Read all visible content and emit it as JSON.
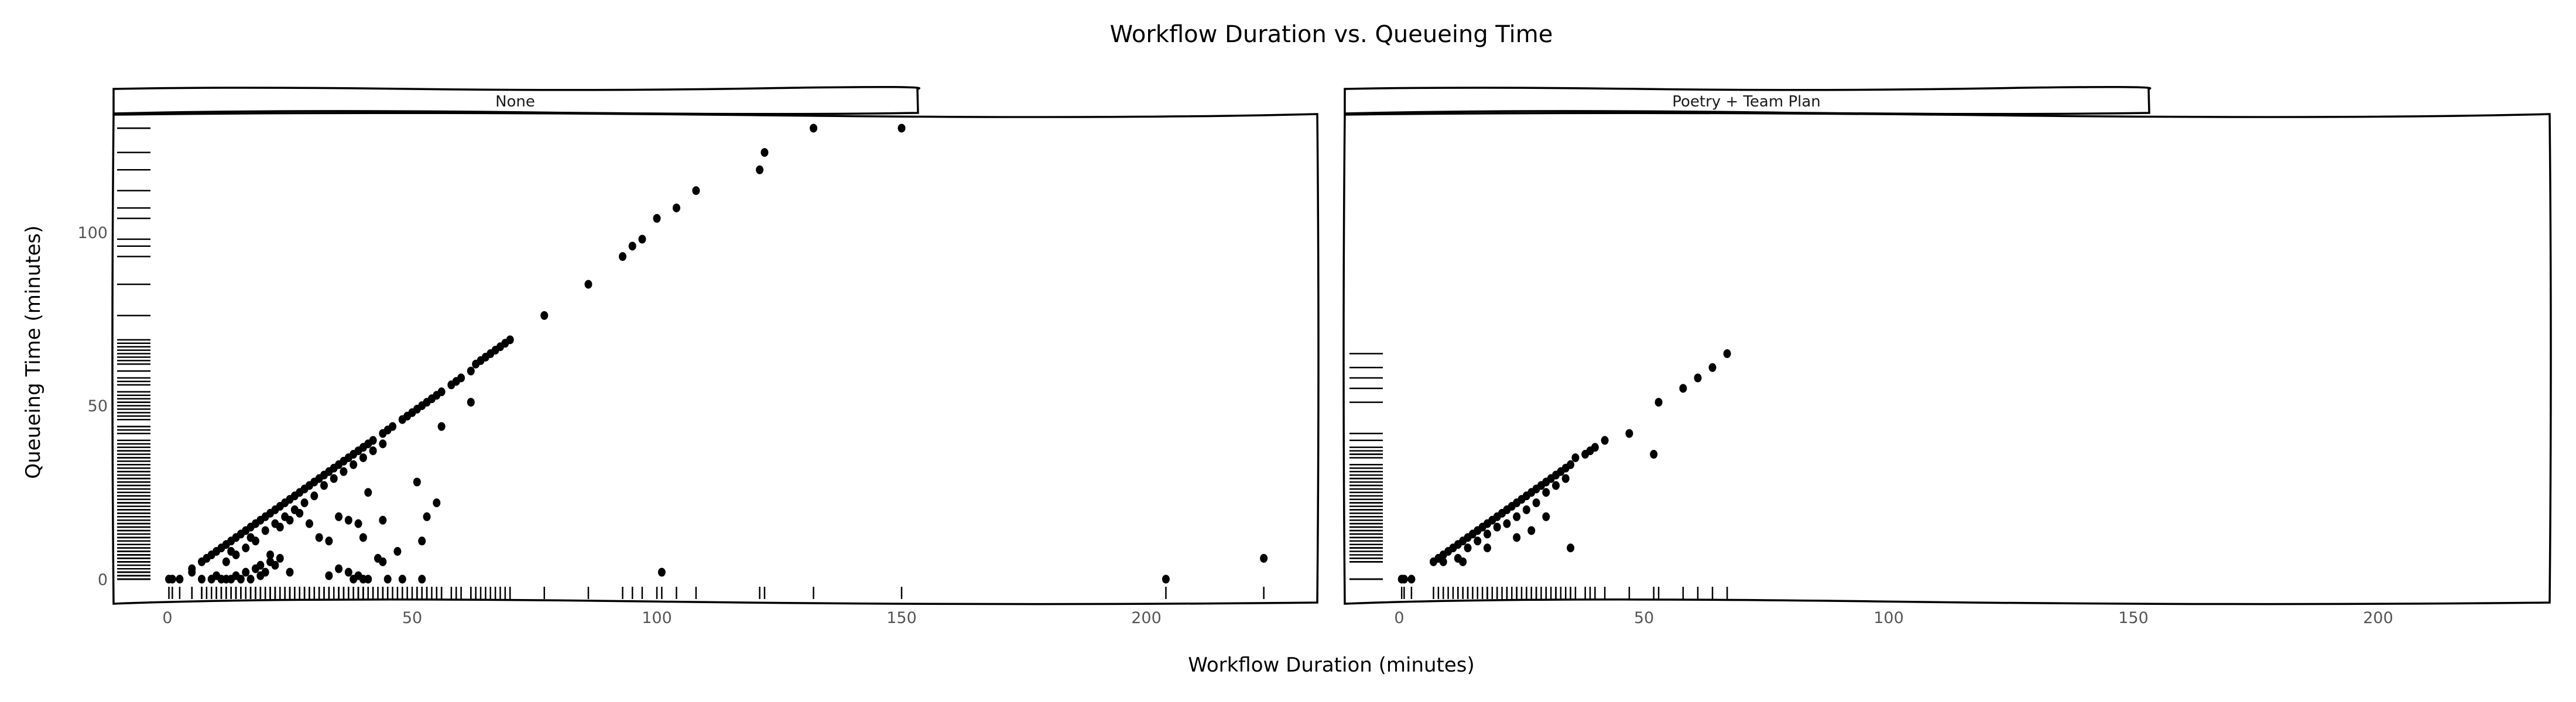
{
  "figure": {
    "title": "Workflow Duration vs. Queueing Time",
    "xlabel": "Workflow Duration (minutes)",
    "ylabel": "Queueing Time (minutes)"
  },
  "panels": [
    {
      "strip_label": "None"
    },
    {
      "strip_label": "Poetry + Team Plan"
    }
  ],
  "axes": {
    "x_ticks": [
      "0",
      "50",
      "100",
      "150",
      "200"
    ],
    "y_ticks": [
      "0",
      "50",
      "100"
    ]
  },
  "chart_data": {
    "type": "scatter",
    "title": "Workflow Duration vs. Queueing Time",
    "xlabel": "Workflow Duration (minutes)",
    "ylabel": "Queueing Time (minutes)",
    "xlim": [
      -11,
      235
    ],
    "ylim": [
      -7,
      134
    ],
    "x_ticks": [
      0,
      50,
      100,
      150,
      200
    ],
    "y_ticks": [
      0,
      50,
      100
    ],
    "grid": false,
    "style": "xkcd hand-drawn, faceted with rug plots on both axes",
    "facets": [
      "None",
      "Poetry + Team Plan"
    ],
    "series": [
      {
        "name": "None",
        "points": [
          [
            0.3,
            0
          ],
          [
            1,
            0
          ],
          [
            2.5,
            0
          ],
          [
            5,
            2
          ],
          [
            7,
            0
          ],
          [
            9,
            0
          ],
          [
            10,
            1
          ],
          [
            11,
            0
          ],
          [
            12,
            0
          ],
          [
            13,
            0
          ],
          [
            14,
            1
          ],
          [
            15,
            0
          ],
          [
            16,
            2
          ],
          [
            17,
            0
          ],
          [
            18,
            3
          ],
          [
            19,
            1
          ],
          [
            20,
            2
          ],
          [
            21,
            5
          ],
          [
            22,
            4
          ],
          [
            23,
            6
          ],
          [
            19,
            4
          ],
          [
            21,
            7
          ],
          [
            5,
            3
          ],
          [
            7,
            5
          ],
          [
            8,
            6
          ],
          [
            9,
            7
          ],
          [
            10,
            8
          ],
          [
            11,
            9
          ],
          [
            12,
            10
          ],
          [
            13,
            11
          ],
          [
            14,
            12
          ],
          [
            15,
            13
          ],
          [
            16,
            14
          ],
          [
            17,
            15
          ],
          [
            18,
            16
          ],
          [
            19,
            17
          ],
          [
            20,
            18
          ],
          [
            21,
            19
          ],
          [
            22,
            20
          ],
          [
            23,
            21
          ],
          [
            24,
            22
          ],
          [
            25,
            23
          ],
          [
            26,
            24
          ],
          [
            27,
            25
          ],
          [
            28,
            26
          ],
          [
            29,
            27
          ],
          [
            30,
            28
          ],
          [
            31,
            29
          ],
          [
            32,
            30
          ],
          [
            33,
            31
          ],
          [
            34,
            32
          ],
          [
            35,
            33
          ],
          [
            36,
            34
          ],
          [
            37,
            35
          ],
          [
            38,
            36
          ],
          [
            39,
            37
          ],
          [
            40,
            38
          ],
          [
            41,
            39
          ],
          [
            42,
            40
          ],
          [
            44,
            42
          ],
          [
            45,
            43
          ],
          [
            46,
            44
          ],
          [
            48,
            46
          ],
          [
            49,
            47
          ],
          [
            50,
            48
          ],
          [
            51,
            49
          ],
          [
            52,
            50
          ],
          [
            53,
            51
          ],
          [
            54,
            52
          ],
          [
            55,
            53
          ],
          [
            56,
            54
          ],
          [
            58,
            56
          ],
          [
            59,
            57
          ],
          [
            60,
            58
          ],
          [
            62,
            60
          ],
          [
            63,
            62
          ],
          [
            64,
            63
          ],
          [
            65,
            64
          ],
          [
            66,
            65
          ],
          [
            67,
            66
          ],
          [
            68,
            67
          ],
          [
            69,
            68
          ],
          [
            70,
            69
          ],
          [
            12,
            5
          ],
          [
            14,
            7
          ],
          [
            16,
            9
          ],
          [
            18,
            11
          ],
          [
            20,
            14
          ],
          [
            22,
            16
          ],
          [
            24,
            18
          ],
          [
            26,
            20
          ],
          [
            28,
            22
          ],
          [
            30,
            24
          ],
          [
            32,
            27
          ],
          [
            34,
            29
          ],
          [
            36,
            31
          ],
          [
            38,
            33
          ],
          [
            40,
            35
          ],
          [
            42,
            37
          ],
          [
            44,
            39
          ],
          [
            13,
            8
          ],
          [
            17,
            12
          ],
          [
            23,
            15
          ],
          [
            25,
            17
          ],
          [
            27,
            19
          ],
          [
            29,
            16
          ],
          [
            31,
            12
          ],
          [
            33,
            11
          ],
          [
            35,
            18
          ],
          [
            37,
            17
          ],
          [
            39,
            16
          ],
          [
            40,
            12
          ],
          [
            41,
            25
          ],
          [
            44,
            17
          ],
          [
            47,
            8
          ],
          [
            51,
            28
          ],
          [
            52,
            11
          ],
          [
            53,
            18
          ],
          [
            55,
            22
          ],
          [
            56,
            44
          ],
          [
            62,
            51
          ],
          [
            25,
            2
          ],
          [
            33,
            1
          ],
          [
            35,
            3
          ],
          [
            37,
            2
          ],
          [
            38,
            0
          ],
          [
            39,
            1
          ],
          [
            40,
            0
          ],
          [
            41,
            0
          ],
          [
            43,
            6
          ],
          [
            44,
            5
          ],
          [
            45,
            0
          ],
          [
            48,
            0
          ],
          [
            52,
            0
          ],
          [
            77,
            76
          ],
          [
            86,
            85
          ],
          [
            93,
            93
          ],
          [
            95,
            96
          ],
          [
            97,
            98
          ],
          [
            100,
            104
          ],
          [
            104,
            107
          ],
          [
            108,
            112
          ],
          [
            121,
            118
          ],
          [
            122,
            123
          ],
          [
            132,
            130
          ],
          [
            150,
            130
          ],
          [
            101,
            2
          ],
          [
            204,
            0
          ],
          [
            224,
            6
          ]
        ]
      },
      {
        "name": "Poetry + Team Plan",
        "points": [
          [
            0.5,
            0
          ],
          [
            1,
            0
          ],
          [
            2.5,
            0
          ],
          [
            7,
            5
          ],
          [
            8,
            6
          ],
          [
            9,
            7
          ],
          [
            10,
            8
          ],
          [
            11,
            9
          ],
          [
            12,
            10
          ],
          [
            13,
            11
          ],
          [
            14,
            12
          ],
          [
            15,
            13
          ],
          [
            16,
            14
          ],
          [
            17,
            15
          ],
          [
            18,
            16
          ],
          [
            19,
            17
          ],
          [
            20,
            18
          ],
          [
            21,
            19
          ],
          [
            22,
            20
          ],
          [
            23,
            21
          ],
          [
            24,
            22
          ],
          [
            25,
            23
          ],
          [
            26,
            24
          ],
          [
            27,
            25
          ],
          [
            28,
            26
          ],
          [
            29,
            27
          ],
          [
            30,
            28
          ],
          [
            31,
            29
          ],
          [
            32,
            30
          ],
          [
            33,
            31
          ],
          [
            34,
            32
          ],
          [
            35,
            33
          ],
          [
            9,
            5
          ],
          [
            12,
            6
          ],
          [
            14,
            9
          ],
          [
            16,
            11
          ],
          [
            18,
            13
          ],
          [
            20,
            15
          ],
          [
            22,
            16
          ],
          [
            24,
            18
          ],
          [
            26,
            20
          ],
          [
            28,
            22
          ],
          [
            30,
            25
          ],
          [
            32,
            27
          ],
          [
            34,
            29
          ],
          [
            13,
            5
          ],
          [
            18,
            9
          ],
          [
            24,
            12
          ],
          [
            27,
            14
          ],
          [
            30,
            18
          ],
          [
            35,
            9
          ],
          [
            36,
            35
          ],
          [
            38,
            36
          ],
          [
            39,
            37
          ],
          [
            40,
            38
          ],
          [
            42,
            40
          ],
          [
            47,
            42
          ],
          [
            53,
            51
          ],
          [
            52,
            36
          ],
          [
            58,
            55
          ],
          [
            61,
            58
          ],
          [
            64,
            61
          ],
          [
            67,
            65
          ]
        ]
      }
    ],
    "rug": "tick marks along x-axis (bottom) and y-axis (left) for each point, dense between 0-60 on x and 0-70 on y"
  }
}
